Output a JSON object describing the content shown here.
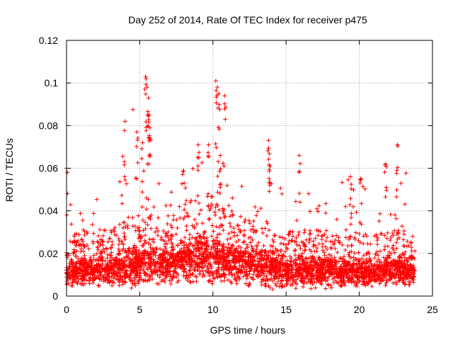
{
  "chart_data": {
    "type": "scatter",
    "title": "Day 252 of 2014, Rate Of TEC Index for receiver p475",
    "xlabel": "GPS time / hours",
    "ylabel": "ROTI / TECUs",
    "xlim": [
      0,
      25
    ],
    "ylim": [
      0,
      0.12
    ],
    "x_ticks": [
      0,
      5,
      10,
      15,
      20,
      25
    ],
    "x_tick_labels": [
      "0",
      "5",
      "10",
      "15",
      "20",
      "25"
    ],
    "y_ticks": [
      0,
      0.02,
      0.04,
      0.06,
      0.08,
      0.1,
      0.12
    ],
    "y_tick_labels": [
      "0",
      "0.02",
      "0.04",
      "0.06",
      "0.08",
      "0.1",
      "0.12"
    ],
    "grid": true,
    "marker": "+",
    "marker_color": "#ff0000",
    "time_range_hours": [
      0,
      23.8
    ],
    "baseline_roti": 0.012,
    "band": [
      {
        "hour": 0,
        "low": 0.004,
        "typical": 0.01,
        "high": 0.06
      },
      {
        "hour": 1,
        "low": 0.004,
        "typical": 0.012,
        "high": 0.045
      },
      {
        "hour": 2,
        "low": 0.004,
        "typical": 0.012,
        "high": 0.053
      },
      {
        "hour": 3,
        "low": 0.004,
        "typical": 0.012,
        "high": 0.035
      },
      {
        "hour": 4,
        "low": 0.003,
        "typical": 0.014,
        "high": 0.082
      },
      {
        "hour": 5,
        "low": 0.004,
        "typical": 0.015,
        "high": 0.103
      },
      {
        "hour": 6,
        "low": 0.005,
        "typical": 0.015,
        "high": 0.055
      },
      {
        "hour": 7,
        "low": 0.005,
        "typical": 0.015,
        "high": 0.055
      },
      {
        "hour": 8,
        "low": 0.006,
        "typical": 0.017,
        "high": 0.06
      },
      {
        "hour": 9,
        "low": 0.005,
        "typical": 0.018,
        "high": 0.071
      },
      {
        "hour": 10,
        "low": 0.005,
        "typical": 0.018,
        "high": 0.101
      },
      {
        "hour": 11,
        "low": 0.005,
        "typical": 0.016,
        "high": 0.066
      },
      {
        "hour": 12,
        "low": 0.004,
        "typical": 0.015,
        "high": 0.058
      },
      {
        "hour": 13,
        "low": 0.004,
        "typical": 0.014,
        "high": 0.055
      },
      {
        "hour": 14,
        "low": 0.002,
        "typical": 0.013,
        "high": 0.073
      },
      {
        "hour": 15,
        "low": 0.003,
        "typical": 0.012,
        "high": 0.04
      },
      {
        "hour": 16,
        "low": 0.003,
        "typical": 0.012,
        "high": 0.066
      },
      {
        "hour": 17,
        "low": 0.003,
        "typical": 0.012,
        "high": 0.046
      },
      {
        "hour": 18,
        "low": 0.003,
        "typical": 0.012,
        "high": 0.052
      },
      {
        "hour": 19,
        "low": 0.004,
        "typical": 0.011,
        "high": 0.056
      },
      {
        "hour": 20,
        "low": 0.004,
        "typical": 0.011,
        "high": 0.055
      },
      {
        "hour": 21,
        "low": 0.004,
        "typical": 0.011,
        "high": 0.045
      },
      {
        "hour": 22,
        "low": 0.004,
        "typical": 0.012,
        "high": 0.062
      },
      {
        "hour": 23,
        "low": 0.004,
        "typical": 0.013,
        "high": 0.071
      },
      {
        "hour": 23.8,
        "low": 0.004,
        "typical": 0.012,
        "high": 0.045
      }
    ],
    "notable_points": [
      {
        "x": 0.0,
        "y": 0.06
      },
      {
        "x": 4.0,
        "y": 0.082
      },
      {
        "x": 4.8,
        "y": 0.077
      },
      {
        "x": 5.4,
        "y": 0.103
      },
      {
        "x": 5.5,
        "y": 0.098
      },
      {
        "x": 5.6,
        "y": 0.093
      },
      {
        "x": 5.65,
        "y": 0.085
      },
      {
        "x": 5.7,
        "y": 0.079
      },
      {
        "x": 5.2,
        "y": 0.072
      },
      {
        "x": 9.0,
        "y": 0.071
      },
      {
        "x": 9.7,
        "y": 0.071
      },
      {
        "x": 10.2,
        "y": 0.101
      },
      {
        "x": 10.3,
        "y": 0.098
      },
      {
        "x": 10.4,
        "y": 0.095
      },
      {
        "x": 10.8,
        "y": 0.094
      },
      {
        "x": 10.5,
        "y": 0.066
      },
      {
        "x": 13.8,
        "y": 0.073
      },
      {
        "x": 13.9,
        "y": 0.061
      },
      {
        "x": 15.9,
        "y": 0.066
      },
      {
        "x": 21.8,
        "y": 0.062
      },
      {
        "x": 22.6,
        "y": 0.071
      },
      {
        "x": 19.4,
        "y": 0.056
      },
      {
        "x": 20.1,
        "y": 0.055
      }
    ]
  }
}
